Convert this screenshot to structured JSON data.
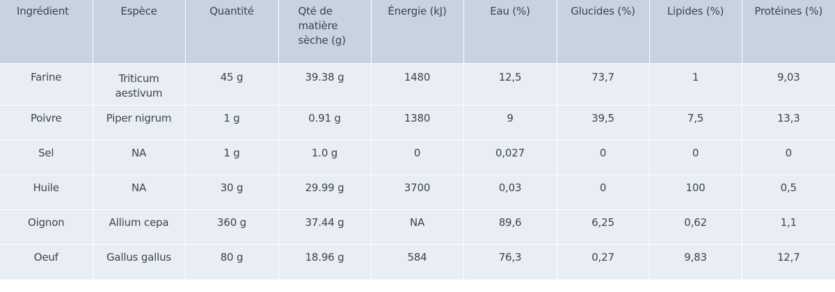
{
  "table": {
    "headers": [
      "Ingrédient",
      "Espèce",
      "Quantité",
      "Qté de matière sèche (g)",
      "Énergie (kJ)",
      "Eau (%)",
      "Glucides (%)",
      "Lipides (%)",
      "Protéines (%)"
    ],
    "rows": [
      [
        "Farine",
        "Triticum aestivum",
        "45 g",
        "39.38 g",
        "1480",
        "12,5",
        "73,7",
        "1",
        "9,03"
      ],
      [
        "Poivre",
        "Piper nigrum",
        "1 g",
        "0.91 g",
        "1380",
        "9",
        "39,5",
        "7,5",
        "13,3"
      ],
      [
        "Sel",
        "NA",
        "1 g",
        "1.0 g",
        "0",
        "0,027",
        "0",
        "0",
        "0"
      ],
      [
        "Huile",
        "NA",
        "30 g",
        "29.99 g",
        "3700",
        "0,03",
        "0",
        "100",
        "0,5"
      ],
      [
        "Oignon",
        "Allium cepa",
        "360 g",
        "37.44 g",
        "NA",
        "89,6",
        "6,25",
        "0,62",
        "1,1"
      ],
      [
        "Oeuf",
        "Gallus gallus",
        "80 g",
        "18.96 g",
        "584",
        "76,3",
        "0,27",
        "9,83",
        "12,7"
      ]
    ]
  }
}
